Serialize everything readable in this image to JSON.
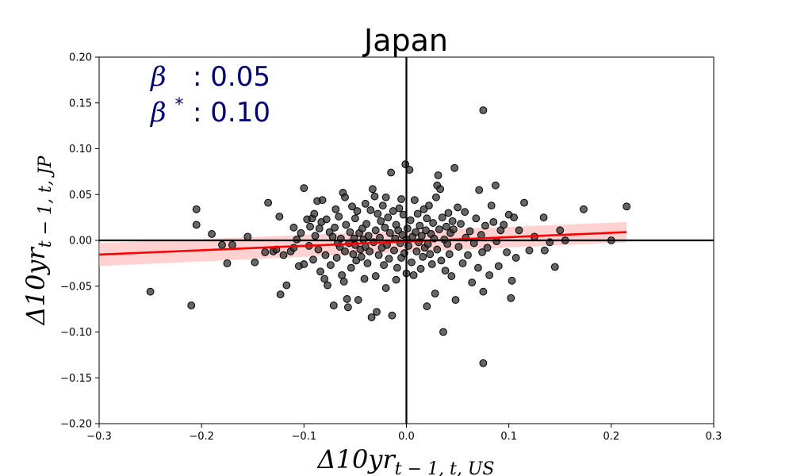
{
  "chart_data": {
    "type": "scatter",
    "title": "Japan",
    "xlabel": {
      "main": "Δ10yr",
      "sub": "t − 1, t, US"
    },
    "ylabel": {
      "main": "Δ10yr",
      "sub": "t − 1, t, JP"
    },
    "xlim": [
      -0.3,
      0.3
    ],
    "ylim": [
      -0.2,
      0.2
    ],
    "x_ticks": [
      "−0.3",
      "−0.2",
      "−0.1",
      "0.0",
      "0.1",
      "0.2",
      "0.3"
    ],
    "y_ticks": [
      "0.20",
      "0.15",
      "0.10",
      "0.05",
      "0.00",
      "−0.05",
      "−0.10",
      "−0.15",
      "−0.20"
    ],
    "annotations": [
      {
        "symbol": "β",
        "sup": "",
        "text": ": 0.05"
      },
      {
        "symbol": "β",
        "sup": "*",
        "text": ": 0.10"
      }
    ],
    "regression": {
      "x": [
        -0.3,
        0.215
      ],
      "y": [
        -0.0155,
        0.009
      ],
      "ci_lower": [
        -0.028,
        -0.002
      ],
      "ci_upper": [
        -0.003,
        0.02
      ]
    },
    "points": [
      [
        -0.25,
        -0.056
      ],
      [
        -0.21,
        -0.071
      ],
      [
        -0.205,
        0.034
      ],
      [
        -0.205,
        0.017
      ],
      [
        -0.19,
        0.007
      ],
      [
        -0.18,
        -0.005
      ],
      [
        -0.175,
        -0.025
      ],
      [
        -0.17,
        -0.005
      ],
      [
        -0.155,
        0.004
      ],
      [
        -0.148,
        -0.024
      ],
      [
        -0.138,
        -0.013
      ],
      [
        -0.135,
        0.041
      ],
      [
        -0.13,
        -0.012
      ],
      [
        -0.127,
        -0.01
      ],
      [
        -0.124,
        0.026
      ],
      [
        -0.123,
        -0.059
      ],
      [
        -0.12,
        -0.016
      ],
      [
        -0.117,
        -0.049
      ],
      [
        -0.113,
        -0.012
      ],
      [
        -0.11,
        0.014
      ],
      [
        -0.11,
        -0.008
      ],
      [
        -0.107,
        0.001
      ],
      [
        -0.105,
        -0.028
      ],
      [
        -0.103,
        0.008
      ],
      [
        -0.1,
        0.057
      ],
      [
        -0.1,
        -0.026
      ],
      [
        -0.097,
        0.023
      ],
      [
        -0.095,
        -0.006
      ],
      [
        -0.094,
        0.015
      ],
      [
        -0.092,
        0.024
      ],
      [
        -0.091,
        -0.021
      ],
      [
        -0.09,
        0.029
      ],
      [
        -0.089,
        0.005
      ],
      [
        -0.087,
        0.043
      ],
      [
        -0.086,
        -0.01
      ],
      [
        -0.085,
        0.013
      ],
      [
        -0.084,
        -0.034
      ],
      [
        -0.083,
        0.02
      ],
      [
        -0.082,
        0.044
      ],
      [
        -0.08,
        -0.042
      ],
      [
        -0.079,
        -0.016
      ],
      [
        -0.078,
        0.023
      ],
      [
        -0.077,
        -0.049
      ],
      [
        -0.075,
        0.009
      ],
      [
        -0.074,
        -0.027
      ],
      [
        -0.072,
        0.004
      ],
      [
        -0.071,
        -0.071
      ],
      [
        -0.07,
        0.014
      ],
      [
        -0.069,
        0.034
      ],
      [
        -0.068,
        -0.019
      ],
      [
        -0.067,
        -0.003
      ],
      [
        -0.066,
        0.026
      ],
      [
        -0.065,
        -0.007
      ],
      [
        -0.064,
        0.002
      ],
      [
        -0.063,
        -0.038
      ],
      [
        -0.062,
        0.052
      ],
      [
        -0.061,
        -0.045
      ],
      [
        -0.06,
        0.047
      ],
      [
        -0.06,
        -0.012
      ],
      [
        -0.059,
        0.017
      ],
      [
        -0.058,
        -0.064
      ],
      [
        -0.057,
        -0.073
      ],
      [
        -0.056,
        -0.003
      ],
      [
        -0.055,
        0.009
      ],
      [
        -0.054,
        -0.03
      ],
      [
        -0.053,
        0.037
      ],
      [
        -0.052,
        -0.015
      ],
      [
        -0.051,
        0.002
      ],
      [
        -0.05,
        0.024
      ],
      [
        -0.05,
        -0.005
      ],
      [
        -0.049,
        -0.022
      ],
      [
        -0.048,
        0.032
      ],
      [
        -0.047,
        -0.065
      ],
      [
        -0.046,
        0.008
      ],
      [
        -0.045,
        -0.01
      ],
      [
        -0.044,
        -0.018
      ],
      [
        -0.043,
        0.013
      ],
      [
        -0.042,
        0.001
      ],
      [
        -0.041,
        -0.042
      ],
      [
        -0.04,
        0.04
      ],
      [
        -0.04,
        -0.007
      ],
      [
        -0.039,
        0.018
      ],
      [
        -0.038,
        -0.025
      ],
      [
        -0.037,
        0.005
      ],
      [
        -0.036,
        -0.012
      ],
      [
        -0.035,
        0.033
      ],
      [
        -0.034,
        -0.084
      ],
      [
        -0.033,
        0.056
      ],
      [
        -0.032,
        -0.002
      ],
      [
        -0.031,
        0.048
      ],
      [
        -0.03,
        -0.039
      ],
      [
        -0.03,
        0.011
      ],
      [
        -0.029,
        -0.078
      ],
      [
        -0.028,
        0.029
      ],
      [
        -0.027,
        -0.016
      ],
      [
        -0.026,
        0.003
      ],
      [
        -0.025,
        0.021
      ],
      [
        -0.024,
        -0.008
      ],
      [
        -0.023,
        0.038
      ],
      [
        -0.022,
        -0.027
      ],
      [
        -0.021,
        0.014
      ],
      [
        -0.02,
        -0.052
      ],
      [
        -0.02,
        0.047
      ],
      [
        -0.019,
        -0.005
      ],
      [
        -0.018,
        0.025
      ],
      [
        -0.017,
        -0.02
      ],
      [
        -0.016,
        0.008
      ],
      [
        -0.015,
        0.074
      ],
      [
        -0.014,
        -0.082
      ],
      [
        -0.013,
        0.032
      ],
      [
        -0.012,
        -0.011
      ],
      [
        -0.011,
        0.002
      ],
      [
        -0.01,
        -0.043
      ],
      [
        -0.01,
        0.017
      ],
      [
        -0.009,
        -0.03
      ],
      [
        -0.008,
        0.011
      ],
      [
        -0.007,
        0.035
      ],
      [
        -0.006,
        -0.003
      ],
      [
        -0.005,
        0.045
      ],
      [
        -0.005,
        -0.019
      ],
      [
        -0.004,
        0.006
      ],
      [
        -0.003,
        0.028
      ],
      [
        -0.002,
        -0.014
      ],
      [
        -0.001,
        0.083
      ],
      [
        0.0,
        -0.036
      ],
      [
        0.0,
        0.001
      ],
      [
        0.001,
        0.013
      ],
      [
        0.002,
        -0.006
      ],
      [
        0.003,
        0.077
      ],
      [
        0.004,
        0.022
      ],
      [
        0.005,
        -0.024
      ],
      [
        0.006,
        0.004
      ],
      [
        0.007,
        -0.038
      ],
      [
        0.008,
        0.044
      ],
      [
        0.009,
        0.009
      ],
      [
        0.01,
        -0.012
      ],
      [
        0.011,
        0.029
      ],
      [
        0.012,
        -0.002
      ],
      [
        0.013,
        0.016
      ],
      [
        0.014,
        -0.031
      ],
      [
        0.015,
        0.005
      ],
      [
        0.016,
        -0.018
      ],
      [
        0.017,
        0.034
      ],
      [
        0.018,
        -0.008
      ],
      [
        0.019,
        0.011
      ],
      [
        0.02,
        -0.072
      ],
      [
        0.02,
        0.024
      ],
      [
        0.021,
        -0.004
      ],
      [
        0.022,
        0.038
      ],
      [
        0.023,
        -0.015
      ],
      [
        0.024,
        0.007
      ],
      [
        0.025,
        -0.026
      ],
      [
        0.026,
        0.019
      ],
      [
        0.027,
        0.002
      ],
      [
        0.028,
        -0.058
      ],
      [
        0.029,
        0.047
      ],
      [
        0.03,
        -0.01
      ],
      [
        0.03,
        0.06
      ],
      [
        0.031,
        0.071
      ],
      [
        0.032,
        0.012
      ],
      [
        0.033,
        0.056
      ],
      [
        0.034,
        -0.022
      ],
      [
        0.035,
        0.025
      ],
      [
        0.036,
        -0.1
      ],
      [
        0.037,
        0.001
      ],
      [
        0.038,
        -0.033
      ],
      [
        0.039,
        0.015
      ],
      [
        0.04,
        -0.004
      ],
      [
        0.041,
        0.03
      ],
      [
        0.042,
        -0.015
      ],
      [
        0.043,
        0.008
      ],
      [
        0.044,
        -0.039
      ],
      [
        0.045,
        0.021
      ],
      [
        0.046,
        0.012
      ],
      [
        0.047,
        0.079
      ],
      [
        0.048,
        -0.065
      ],
      [
        0.05,
        0.036
      ],
      [
        0.051,
        -0.007
      ],
      [
        0.053,
        0.018
      ],
      [
        0.055,
        -0.025
      ],
      [
        0.057,
        0.031
      ],
      [
        0.058,
        0.003
      ],
      [
        0.06,
        -0.016
      ],
      [
        0.062,
        0.01
      ],
      [
        0.064,
        -0.046
      ],
      [
        0.066,
        -0.003
      ],
      [
        0.068,
        0.024
      ],
      [
        0.07,
        -0.03
      ],
      [
        0.071,
        0.055
      ],
      [
        0.073,
        0.006
      ],
      [
        0.074,
        -0.013
      ],
      [
        0.075,
        -0.056
      ],
      [
        0.075,
        0.142
      ],
      [
        0.075,
        -0.134
      ],
      [
        0.077,
        0.016
      ],
      [
        0.079,
        -0.008
      ],
      [
        0.081,
        -0.038
      ],
      [
        0.083,
        0.038
      ],
      [
        0.085,
        0.02
      ],
      [
        0.087,
        0.06
      ],
      [
        0.088,
        -0.001
      ],
      [
        0.09,
        -0.028
      ],
      [
        0.092,
        0.011
      ],
      [
        0.095,
        0.017
      ],
      [
        0.098,
        -0.013
      ],
      [
        0.1,
        0.028
      ],
      [
        0.102,
        -0.063
      ],
      [
        0.103,
        -0.044
      ],
      [
        0.105,
        0.025
      ],
      [
        0.107,
        -0.019
      ],
      [
        0.11,
        0.011
      ],
      [
        0.115,
        0.041
      ],
      [
        0.12,
        -0.011
      ],
      [
        0.125,
        0.004
      ],
      [
        0.134,
        0.025
      ],
      [
        0.135,
        -0.011
      ],
      [
        0.14,
        -0.002
      ],
      [
        0.145,
        -0.029
      ],
      [
        0.15,
        0.011
      ],
      [
        0.155,
        0.0
      ],
      [
        0.173,
        0.034
      ],
      [
        0.2,
        0.0
      ],
      [
        0.215,
        0.037
      ]
    ]
  }
}
